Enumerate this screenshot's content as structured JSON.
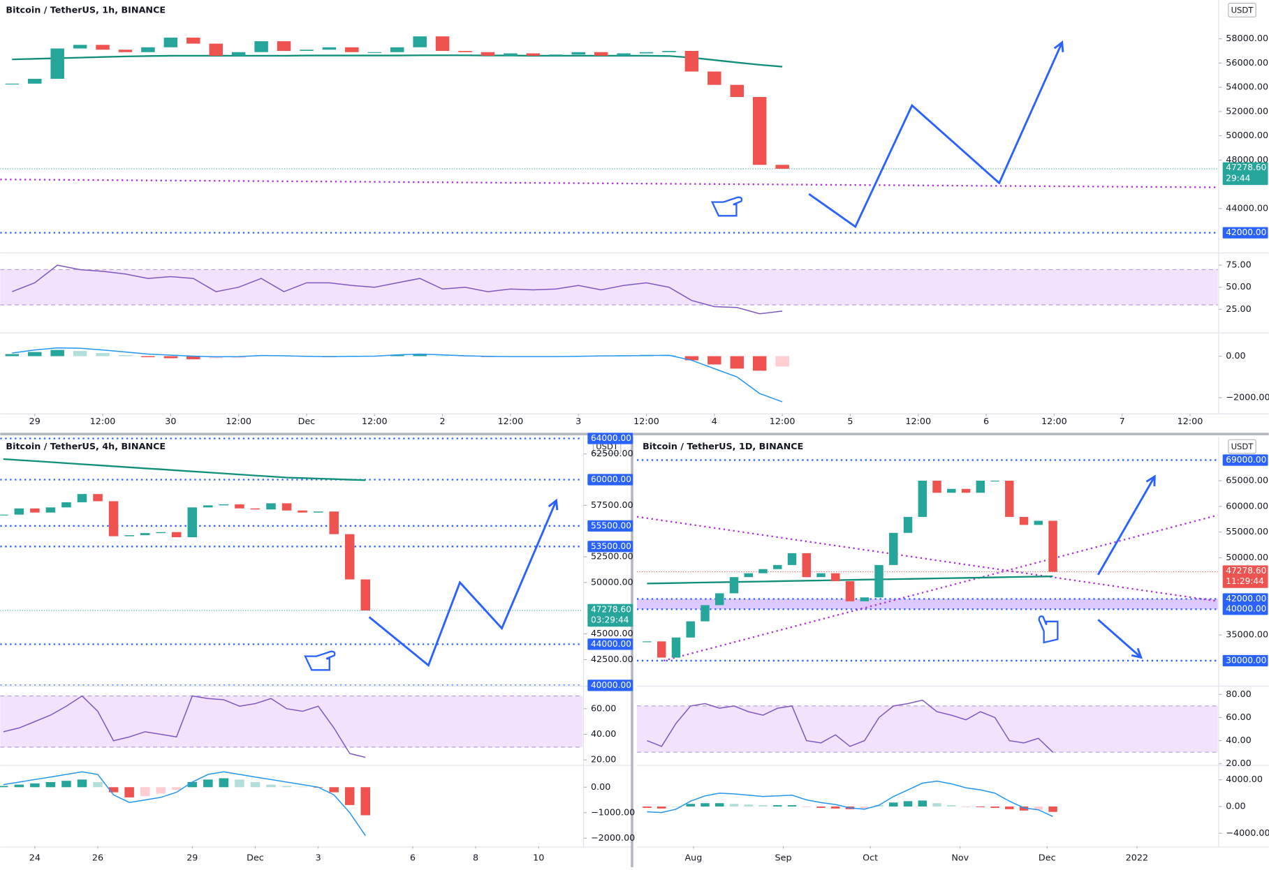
{
  "chart_data": [
    {
      "type": "candlestick",
      "title": "Bitcoin / TetherUS, 1h, BINANCE",
      "currency": "USDT",
      "up_color": "#26a69a",
      "down_color": "#ef5350",
      "x": [
        -4,
        0,
        4,
        8,
        12,
        16,
        20,
        24,
        28,
        32,
        36,
        40,
        44,
        48,
        52,
        56,
        60,
        64,
        68,
        72,
        76,
        80,
        84,
        88,
        92,
        96,
        100,
        104,
        108,
        112,
        116,
        120,
        124,
        128,
        132
      ],
      "values": [
        54300,
        54700,
        57200,
        57500,
        57100,
        56900,
        57300,
        58100,
        57600,
        56600,
        56900,
        57800,
        57000,
        57100,
        57300,
        56900,
        56900,
        57300,
        58200,
        57000,
        56900,
        56600,
        56800,
        56600,
        56700,
        56900,
        56600,
        56800,
        56900,
        57000,
        55300,
        54200,
        53200,
        47600,
        47278.6
      ],
      "ma": {
        "color": "#0f8f7a",
        "values": [
          56300,
          56350,
          56400,
          56450,
          56500,
          56550,
          56580,
          56600,
          56600,
          56600,
          56600,
          56600,
          56600,
          56620,
          56620,
          56620,
          56620,
          56620,
          56640,
          56640,
          56640,
          56620,
          56620,
          56600,
          56600,
          56600,
          56600,
          56600,
          56600,
          56580,
          56450,
          56250,
          56050,
          55850,
          55700
        ]
      },
      "xlim": [
        -6.1,
        208.9
      ],
      "ylim": [
        40400,
        61200
      ],
      "xticks": [
        {
          "value": 0,
          "label": "29"
        },
        {
          "value": 12,
          "label": "12:00"
        },
        {
          "value": 24,
          "label": "30"
        },
        {
          "value": 36,
          "label": "12:00"
        },
        {
          "value": 48,
          "label": "Dec"
        },
        {
          "value": 60,
          "label": "12:00"
        },
        {
          "value": 72,
          "label": "2"
        },
        {
          "value": 84,
          "label": "12:00"
        },
        {
          "value": 96,
          "label": "3"
        },
        {
          "value": 108,
          "label": "12:00"
        },
        {
          "value": 120,
          "label": "4"
        },
        {
          "value": 132,
          "label": "12:00"
        },
        {
          "value": 144,
          "label": "5"
        },
        {
          "value": 156,
          "label": "12:00"
        },
        {
          "value": 168,
          "label": "6"
        },
        {
          "value": 180,
          "label": "12:00"
        },
        {
          "value": 192,
          "label": "7"
        },
        {
          "value": 204,
          "label": "12:00"
        }
      ],
      "yticks": [
        {
          "value": 58000,
          "label": "58000.00"
        },
        {
          "value": 56000,
          "label": "56000.00"
        },
        {
          "value": 54000,
          "label": "54000.00"
        },
        {
          "value": 52000,
          "label": "52000.00"
        },
        {
          "value": 50000,
          "label": "50000.00"
        },
        {
          "value": 48000,
          "label": "48000.00"
        },
        {
          "value": 44000,
          "label": "44000.00"
        }
      ],
      "levels": [
        {
          "value": 42000,
          "label": "42000.00",
          "color": "#2962ff"
        }
      ],
      "trendlines": [
        {
          "color": "#b02fd8",
          "x": [
            -6.1,
            208.9
          ],
          "values": [
            46400,
            45750
          ]
        }
      ],
      "current": {
        "value": 47278.6,
        "label": "47278.60",
        "countdown": "29:44",
        "color": "#26a69a"
      },
      "projections": [
        {
          "color": "#2962ff",
          "x": [
            136.7,
            144.9,
            154.9,
            170.3,
            181.4
          ],
          "values": [
            45200,
            42500,
            52500,
            46100,
            57700
          ]
        }
      ],
      "rsi": {
        "color": "#7e57c2",
        "band": [
          30,
          70
        ],
        "ylim": [
          0,
          87
        ],
        "yticks": [
          {
            "value": 75,
            "label": "75.00"
          },
          {
            "value": 50,
            "label": "50.00"
          },
          {
            "value": 25,
            "label": "25.00"
          }
        ],
        "values": [
          45,
          55,
          75,
          70,
          68,
          65,
          60,
          62,
          60,
          45,
          50,
          60,
          45,
          55,
          55,
          52,
          50,
          55,
          60,
          48,
          50,
          45,
          48,
          47,
          48,
          52,
          47,
          52,
          55,
          50,
          35,
          28,
          27,
          20,
          23
        ]
      },
      "macd": {
        "line_color": "#2196f3",
        "ylim": [
          -2700,
          1000
        ],
        "yticks": [
          {
            "value": 0,
            "label": "0.00"
          },
          {
            "value": -2000,
            "label": "−2000.00"
          }
        ],
        "histogram": [
          100,
          200,
          300,
          250,
          150,
          50,
          -50,
          -100,
          -150,
          -100,
          -80,
          50,
          40,
          -30,
          -50,
          -30,
          -20,
          50,
          80,
          30,
          -20,
          -40,
          -30,
          -20,
          -30,
          -20,
          30,
          40,
          60,
          50,
          -200,
          -400,
          -600,
          -700,
          -500
        ],
        "line": [
          150,
          300,
          400,
          380,
          300,
          200,
          100,
          50,
          0,
          -30,
          -20,
          30,
          20,
          -10,
          -20,
          -10,
          0,
          60,
          100,
          60,
          20,
          -10,
          -20,
          -20,
          -20,
          -10,
          10,
          20,
          30,
          40,
          -200,
          -600,
          -1000,
          -1800,
          -2200
        ]
      }
    },
    {
      "type": "candlestick",
      "title": "Bitcoin / TetherUS, 4h, BINANCE",
      "currency": "USDT",
      "up_color": "#26a69a",
      "down_color": "#ef5350",
      "x": [
        -1,
        -0.5,
        0,
        0.5,
        1,
        1.5,
        2,
        2.5,
        3,
        3.5,
        4,
        4.5,
        5,
        5.5,
        6,
        6.5,
        7,
        7.5,
        8,
        8.5,
        9,
        9.5,
        10,
        10.5
      ],
      "values": [
        56600,
        57200,
        56800,
        57300,
        57800,
        58600,
        57900,
        54500,
        54600,
        54800,
        54900,
        54400,
        57300,
        57500,
        57600,
        57200,
        57100,
        57700,
        57000,
        56800,
        56900,
        54700,
        50300,
        47278.6
      ],
      "ma": {
        "color": "#0f8f7a",
        "values": [
          62000,
          61900,
          61800,
          61700,
          61600,
          61500,
          61400,
          61300,
          61200,
          61100,
          61000,
          60900,
          60800,
          60700,
          60600,
          60500,
          60400,
          60300,
          60200,
          60150,
          60100,
          60050,
          60000,
          59950
        ]
      },
      "xlim": [
        -1.1,
        17.4
      ],
      "ylim": [
        40000,
        64200
      ],
      "xticks": [
        {
          "value": 0,
          "label": "24"
        },
        {
          "value": 2,
          "label": "26"
        },
        {
          "value": 5,
          "label": "29"
        },
        {
          "value": 7,
          "label": "Dec"
        },
        {
          "value": 9,
          "label": "3"
        },
        {
          "value": 12,
          "label": "6"
        },
        {
          "value": 14,
          "label": "8"
        },
        {
          "value": 16,
          "label": "10"
        }
      ],
      "yticks": [
        {
          "value": 62500,
          "label": "62500.00"
        },
        {
          "value": 57500,
          "label": "57500.00"
        },
        {
          "value": 52500,
          "label": "52500.00"
        },
        {
          "value": 50000,
          "label": "50000.00"
        },
        {
          "value": 45000,
          "label": "45000.00"
        },
        {
          "value": 42500,
          "label": "42500.00"
        }
      ],
      "levels": [
        {
          "value": 64000,
          "label": "64000.00",
          "color": "#2962ff"
        },
        {
          "value": 60000,
          "label": "60000.00",
          "color": "#2962ff"
        },
        {
          "value": 55500,
          "label": "55500.00",
          "color": "#2962ff"
        },
        {
          "value": 53500,
          "label": "53500.00",
          "color": "#2962ff"
        },
        {
          "value": 44000,
          "label": "44000.00",
          "color": "#2962ff"
        },
        {
          "value": 40000,
          "label": "40000.00",
          "color": "#2962ff"
        }
      ],
      "current": {
        "value": 47278.6,
        "label": "47278.60",
        "countdown": "03:29:44",
        "color": "#26a69a"
      },
      "projections": [
        {
          "color": "#2962ff",
          "x": [
            10.62,
            12.5,
            13.5,
            14.83,
            16.56
          ],
          "values": [
            46640,
            41950,
            50000,
            45550,
            57970
          ]
        }
      ],
      "rsi": {
        "color": "#7e57c2",
        "band": [
          30,
          70
        ],
        "ylim": [
          17,
          77
        ],
        "yticks": [
          {
            "value": 60,
            "label": "60.00"
          },
          {
            "value": 40,
            "label": "40.00"
          },
          {
            "value": 20,
            "label": "20.00"
          }
        ],
        "values": [
          42,
          45,
          50,
          55,
          62,
          70,
          58,
          35,
          38,
          42,
          40,
          38,
          70,
          68,
          67,
          62,
          64,
          68,
          60,
          58,
          62,
          45,
          25,
          22
        ]
      },
      "macd": {
        "line_color": "#2196f3",
        "ylim": [
          -2250,
          760
        ],
        "yticks": [
          {
            "value": 0,
            "label": "0.00"
          },
          {
            "value": -1000,
            "label": "−1000.00"
          },
          {
            "value": -2000,
            "label": "−2000.00"
          }
        ],
        "histogram": [
          50,
          100,
          150,
          200,
          250,
          300,
          200,
          -200,
          -400,
          -350,
          -250,
          -100,
          200,
          300,
          350,
          300,
          200,
          100,
          50,
          20,
          -20,
          -200,
          -700,
          -1100
        ],
        "line": [
          100,
          200,
          300,
          400,
          500,
          600,
          500,
          -300,
          -600,
          -500,
          -400,
          -200,
          200,
          500,
          600,
          500,
          400,
          300,
          200,
          100,
          0,
          -300,
          -1000,
          -1900
        ]
      }
    },
    {
      "type": "candlestick",
      "title": "Bitcoin / TetherUS, 1D, BINANCE",
      "currency": "USDT",
      "up_color": "#26a69a",
      "down_color": "#ef5350",
      "x": [
        15,
        20,
        25,
        30,
        35,
        40,
        45,
        50,
        55,
        60,
        65,
        70,
        75,
        80,
        85,
        90,
        95,
        100,
        105,
        110,
        115,
        120,
        125,
        130,
        135,
        140,
        145,
        150,
        155
      ],
      "values": [
        33750,
        30600,
        34500,
        37650,
        40800,
        43100,
        46250,
        47000,
        47800,
        48600,
        50900,
        46250,
        47000,
        45450,
        41550,
        42300,
        48600,
        54850,
        57950,
        65000,
        62650,
        63400,
        62650,
        65000,
        65000,
        57950,
        56400,
        57200,
        47278.6
      ],
      "ma": {
        "color": "#0f8f7a",
        "values": [
          45000,
          45050,
          45100,
          45150,
          45200,
          45250,
          45300,
          45350,
          45400,
          45450,
          45500,
          45550,
          45600,
          45650,
          45700,
          45750,
          45800,
          45850,
          45900,
          45950,
          46000,
          46050,
          46100,
          46150,
          46200,
          46250,
          46300,
          46350,
          46400
        ]
      },
      "xlim": [
        11.5,
        211.9
      ],
      "ylim": [
        25200,
        73600
      ],
      "xticks": [
        {
          "value": 31,
          "label": "Aug"
        },
        {
          "value": 62,
          "label": "Sep"
        },
        {
          "value": 92,
          "label": "Oct"
        },
        {
          "value": 123,
          "label": "Nov"
        },
        {
          "value": 153,
          "label": "Dec"
        },
        {
          "value": 184,
          "label": "2022"
        }
      ],
      "yticks": [
        {
          "value": 65000,
          "label": "65000.00"
        },
        {
          "value": 60000,
          "label": "60000.00"
        },
        {
          "value": 55000,
          "label": "55000.00"
        },
        {
          "value": 50000,
          "label": "50000.00"
        },
        {
          "value": 35000,
          "label": "35000.00"
        }
      ],
      "levels": [
        {
          "value": 69000,
          "label": "69000.00",
          "color": "#2962ff"
        },
        {
          "value": 42000,
          "label": "42000.00",
          "color": "#2962ff"
        },
        {
          "value": 40000,
          "label": "40000.00",
          "color": "#2962ff"
        },
        {
          "value": 30000,
          "label": "30000.00",
          "color": "#2962ff"
        }
      ],
      "zone": [
        40000,
        42000
      ],
      "zone_color": "#b388ff",
      "trendlines": [
        {
          "color": "#b02fd8",
          "x": [
            11.5,
            211.9
          ],
          "values": [
            58000,
            41560
          ]
        },
        {
          "color": "#b02fd8",
          "x": [
            20.7,
            211.9
          ],
          "values": [
            30000,
            58300
          ]
        }
      ],
      "current": {
        "value": 47278.6,
        "label": "47278.60",
        "countdown": "11:29:44",
        "color": "#ef5350"
      },
      "projections": [
        {
          "color": "#2962ff",
          "x": [
            170.6,
            190.1
          ],
          "values": [
            46700,
            65800
          ]
        },
        {
          "color": "#2962ff",
          "x": [
            170.6,
            185.4
          ],
          "values": [
            37970,
            30625
          ]
        }
      ],
      "rsi": {
        "color": "#7e57c2",
        "band": [
          30,
          70
        ],
        "ylim": [
          20,
          85
        ],
        "yticks": [
          {
            "value": 80,
            "label": "80.00"
          },
          {
            "value": 60,
            "label": "60.00"
          },
          {
            "value": 40,
            "label": "40.00"
          },
          {
            "value": 20,
            "label": "20.00"
          }
        ],
        "values": [
          40,
          35,
          55,
          70,
          72,
          68,
          70,
          65,
          62,
          68,
          70,
          40,
          38,
          45,
          35,
          40,
          60,
          70,
          72,
          75,
          65,
          62,
          58,
          65,
          60,
          40,
          38,
          42,
          30
        ]
      },
      "macd": {
        "line_color": "#2196f3",
        "ylim": [
          -5700,
          5800
        ],
        "yticks": [
          {
            "value": 4000,
            "label": "4000.00"
          },
          {
            "value": 0,
            "label": "0.00"
          },
          {
            "value": -4000,
            "label": "−4000.00"
          }
        ],
        "histogram": [
          -200,
          -300,
          0,
          400,
          500,
          500,
          400,
          300,
          200,
          200,
          200,
          -100,
          -200,
          -300,
          -400,
          -300,
          200,
          600,
          800,
          900,
          500,
          200,
          -100,
          -100,
          -200,
          -400,
          -600,
          -500,
          -800
        ],
        "line": [
          -800,
          -900,
          -400,
          800,
          1600,
          2000,
          1900,
          1700,
          1500,
          1600,
          1700,
          1000,
          600,
          300,
          -200,
          -400,
          200,
          1500,
          2500,
          3500,
          3800,
          3400,
          2800,
          2500,
          2000,
          800,
          -200,
          -500,
          -1500
        ]
      }
    }
  ]
}
